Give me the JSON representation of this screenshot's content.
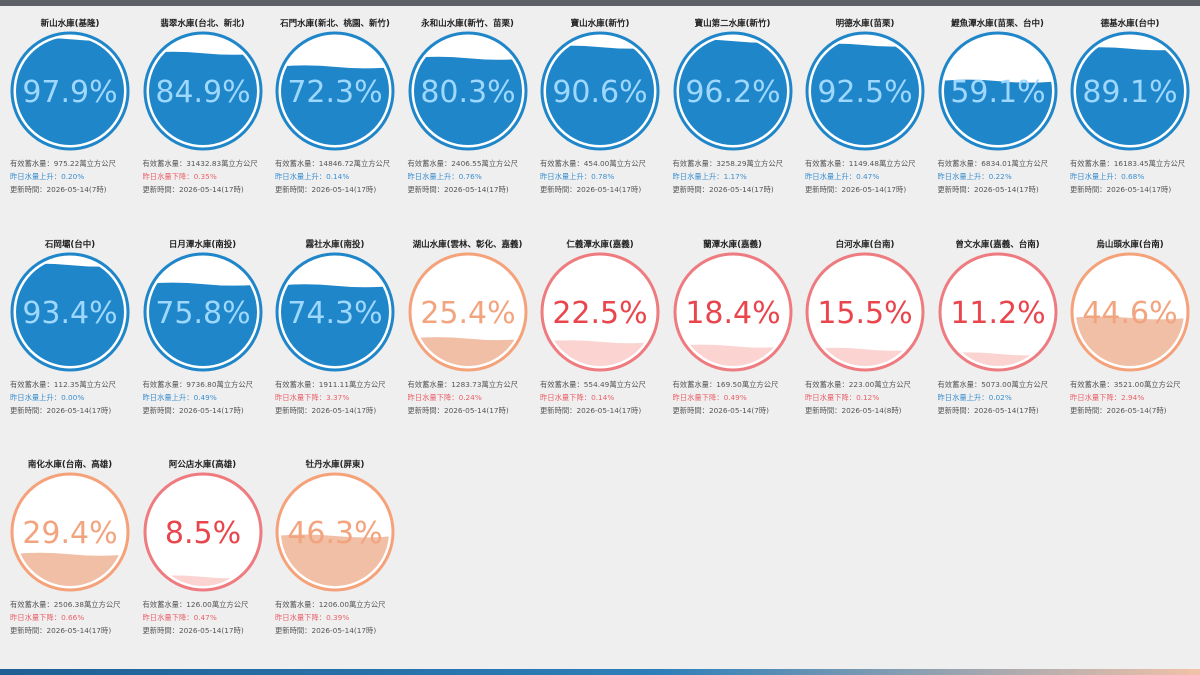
{
  "labels": {
    "capacity_prefix": "有效蓄水量：",
    "capacity_unit": "萬立方公尺",
    "rise_prefix": "昨日水量上升：",
    "fall_prefix": "昨日水量下降：",
    "time_prefix": "更新時間：",
    "percent_sign": "%"
  },
  "colors": {
    "blue_ring": "#1f86c9",
    "blue_fill": "#1f86c9",
    "blue_text": "#9ed8ff",
    "orange_ring": "#f5a27a",
    "orange_fill": "#f1bfa6",
    "orange_text": "#f2a47e",
    "red_ring": "#ee7b7f",
    "red_fill": "#fbd4d2",
    "red_text": "#e8454c"
  },
  "reservoirs": [
    {
      "name": "新山水庫(基隆)",
      "percent": 97.9,
      "level": 0.979,
      "capacity": "975.22",
      "change_dir": "up",
      "change": "0.20%",
      "updated": "2026-05-14(7時)",
      "theme": "blue"
    },
    {
      "name": "翡翠水庫(台北、新北)",
      "percent": 84.9,
      "level": 0.849,
      "capacity": "31432.83",
      "change_dir": "down",
      "change": "0.35%",
      "updated": "2026-05-14(17時)",
      "theme": "blue"
    },
    {
      "name": "石門水庫(新北、桃園、新竹)",
      "percent": 72.3,
      "level": 0.723,
      "capacity": "14846.72",
      "change_dir": "up",
      "change": "0.14%",
      "updated": "2026-05-14(17時)",
      "theme": "blue"
    },
    {
      "name": "永和山水庫(新竹、苗栗)",
      "percent": 80.3,
      "level": 0.803,
      "capacity": "2406.55",
      "change_dir": "up",
      "change": "0.76%",
      "updated": "2026-05-14(17時)",
      "theme": "blue"
    },
    {
      "name": "寶山水庫(新竹)",
      "percent": 90.6,
      "level": 0.906,
      "capacity": "454.00",
      "change_dir": "up",
      "change": "0.78%",
      "updated": "2026-05-14(17時)",
      "theme": "blue"
    },
    {
      "name": "寶山第二水庫(新竹)",
      "percent": 96.2,
      "level": 0.962,
      "capacity": "3258.29",
      "change_dir": "up",
      "change": "1.17%",
      "updated": "2026-05-14(17時)",
      "theme": "blue"
    },
    {
      "name": "明德水庫(苗栗)",
      "percent": 92.5,
      "level": 0.925,
      "capacity": "1149.48",
      "change_dir": "up",
      "change": "0.47%",
      "updated": "2026-05-14(17時)",
      "theme": "blue"
    },
    {
      "name": "鯉魚潭水庫(苗栗、台中)",
      "percent": 59.1,
      "level": 0.591,
      "capacity": "6834.01",
      "change_dir": "up",
      "change": "0.22%",
      "updated": "2026-05-14(17時)",
      "theme": "blue"
    },
    {
      "name": "德基水庫(台中)",
      "percent": 89.1,
      "level": 0.891,
      "capacity": "16183.45",
      "change_dir": "up",
      "change": "0.68%",
      "updated": "2026-05-14(17時)",
      "theme": "blue"
    },
    {
      "name": "石岡壩(台中)",
      "percent": 93.4,
      "level": 0.934,
      "capacity": "112.35",
      "change_dir": "up",
      "change": "0.00%",
      "updated": "2026-05-14(17時)",
      "theme": "blue"
    },
    {
      "name": "日月潭水庫(南投)",
      "percent": 75.8,
      "level": 0.758,
      "capacity": "9736.80",
      "change_dir": "up",
      "change": "0.49%",
      "updated": "2026-05-14(17時)",
      "theme": "blue"
    },
    {
      "name": "霧社水庫(南投)",
      "percent": 74.3,
      "level": 0.743,
      "capacity": "1911.11",
      "change_dir": "down",
      "change": "3.37%",
      "updated": "2026-05-14(17時)",
      "theme": "blue"
    },
    {
      "name": "湖山水庫(雲林、彰化、嘉義)",
      "percent": 25.4,
      "level": 0.254,
      "capacity": "1283.73",
      "change_dir": "down",
      "change": "0.24%",
      "updated": "2026-05-14(17時)",
      "theme": "orange"
    },
    {
      "name": "仁義潭水庫(嘉義)",
      "percent": 22.5,
      "level": 0.225,
      "capacity": "554.49",
      "change_dir": "down",
      "change": "0.14%",
      "updated": "2026-05-14(17時)",
      "theme": "red"
    },
    {
      "name": "蘭潭水庫(嘉義)",
      "percent": 18.4,
      "level": 0.184,
      "capacity": "169.50",
      "change_dir": "down",
      "change": "0.49%",
      "updated": "2026-05-14(7時)",
      "theme": "red"
    },
    {
      "name": "白河水庫(台南)",
      "percent": 15.5,
      "level": 0.155,
      "capacity": "223.00",
      "change_dir": "down",
      "change": "0.12%",
      "updated": "2026-05-14(8時)",
      "theme": "red"
    },
    {
      "name": "曾文水庫(嘉義、台南)",
      "percent": 11.2,
      "level": 0.112,
      "capacity": "5073.00",
      "change_dir": "up",
      "change": "0.02%",
      "updated": "2026-05-14(17時)",
      "theme": "red"
    },
    {
      "name": "烏山頭水庫(台南)",
      "percent": 44.6,
      "level": 0.446,
      "capacity": "3521.00",
      "change_dir": "down",
      "change": "2.94%",
      "updated": "2026-05-14(7時)",
      "theme": "orange"
    },
    {
      "name": "南化水庫(台南、高雄)",
      "percent": 29.4,
      "level": 0.294,
      "capacity": "2506.38",
      "change_dir": "down",
      "change": "0.66%",
      "updated": "2026-05-14(17時)",
      "theme": "orange"
    },
    {
      "name": "阿公店水庫(高雄)",
      "percent": 8.5,
      "level": 0.085,
      "capacity": "126.00",
      "change_dir": "down",
      "change": "0.47%",
      "updated": "2026-05-14(17時)",
      "theme": "red"
    },
    {
      "name": "牡丹水庫(屏東)",
      "percent": 46.3,
      "level": 0.463,
      "capacity": "1206.00",
      "change_dir": "down",
      "change": "0.39%",
      "updated": "2026-05-14(17時)",
      "theme": "orange"
    }
  ]
}
